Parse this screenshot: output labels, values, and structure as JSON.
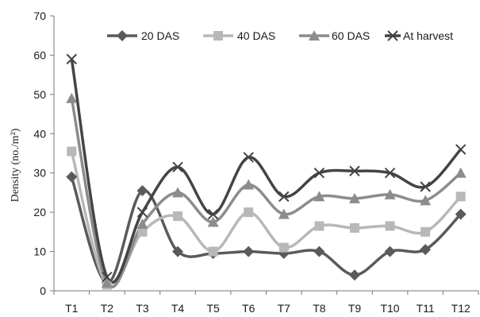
{
  "chart_data": {
    "type": "line",
    "categories": [
      "T1",
      "T2",
      "T3",
      "T4",
      "T5",
      "T6",
      "T7",
      "T8",
      "T9",
      "T10",
      "T11",
      "T12"
    ],
    "ylabel": "Density (no./m²)",
    "ylim": [
      0,
      70
    ],
    "yticks": [
      0,
      10,
      20,
      30,
      40,
      50,
      60,
      70
    ],
    "grid": false,
    "legend_position": "top-right",
    "smooth": true,
    "series": [
      {
        "name": "20 DAS",
        "marker": "diamond",
        "color": "#5a5a5a",
        "values": [
          29,
          2,
          25.5,
          10,
          9.5,
          10,
          9.5,
          10,
          4,
          10,
          10.5,
          19.5
        ]
      },
      {
        "name": "40 DAS",
        "marker": "square",
        "color": "#b8b8b8",
        "values": [
          35.5,
          1.5,
          15,
          19,
          10,
          20,
          11,
          16.5,
          16,
          16.5,
          15,
          24
        ]
      },
      {
        "name": "60 DAS",
        "marker": "triangle",
        "color": "#8c8c8c",
        "values": [
          49,
          2,
          17,
          25,
          17.5,
          27,
          19.5,
          24,
          23.5,
          24.5,
          23,
          30
        ]
      },
      {
        "name": "At harvest",
        "marker": "x",
        "color": "#444444",
        "values": [
          59,
          3.5,
          20,
          31.5,
          19.5,
          34,
          24,
          30,
          30.5,
          30,
          26.5,
          36
        ]
      }
    ]
  }
}
